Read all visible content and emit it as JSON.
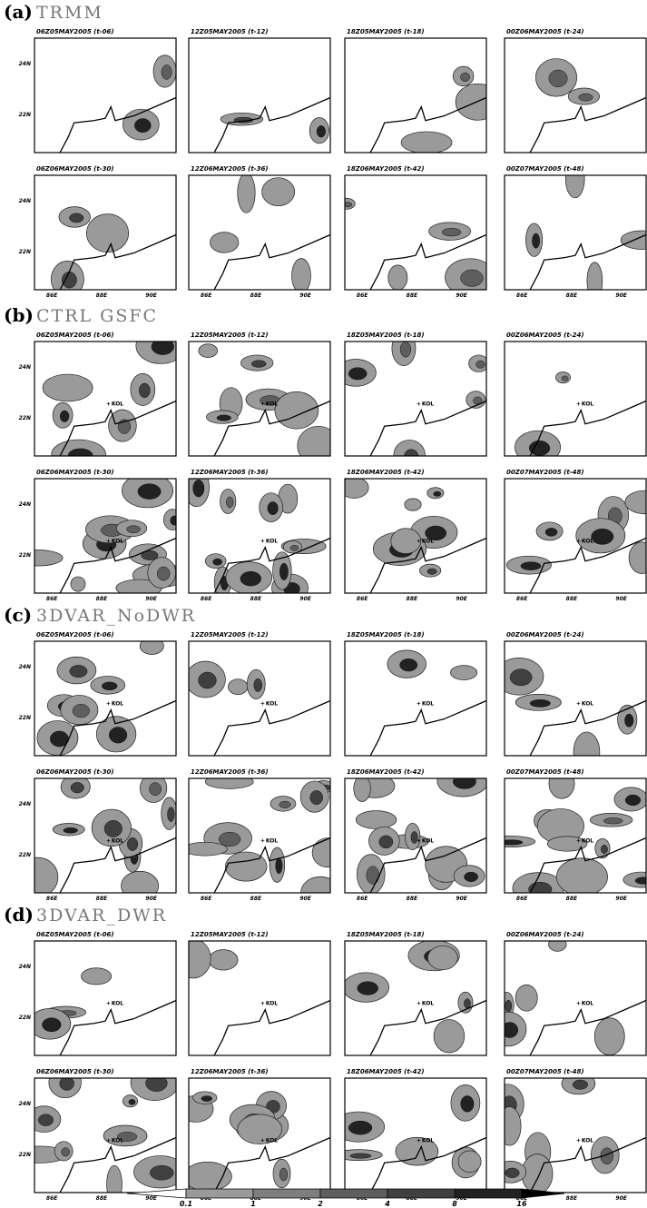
{
  "figure": {
    "sections": [
      {
        "label": "(a)",
        "name": "TRMM",
        "show_marker": false
      },
      {
        "label": "(b)",
        "name": "CTRL  GSFC",
        "show_marker": true
      },
      {
        "label": "(c)",
        "name": "3DVAR_NoDWR",
        "show_marker": true
      },
      {
        "label": "(d)",
        "name": "3DVAR_DWR",
        "show_marker": true
      }
    ],
    "panel_titles": [
      "06Z05MAY2005 (t-06)",
      "12Z05MAY2005 (t-12)",
      "18Z05MAY2005 (t-18)",
      "00Z06MAY2005 (t-24)",
      "06Z06MAY2005 (t-30)",
      "12Z06MAY2005 (t-36)",
      "18Z06MAY2005 (t-42)",
      "00Z07MAY2005 (t-48)"
    ],
    "lon_lim": [
      85.3,
      91
    ],
    "lat_lim": [
      20.5,
      25
    ],
    "lat_ticks": [
      {
        "value": 24,
        "label": "24N"
      },
      {
        "value": 22,
        "label": "22N"
      }
    ],
    "lon_ticks": [
      {
        "value": 86,
        "label": "86E"
      },
      {
        "value": 88,
        "label": "88E"
      },
      {
        "value": 90,
        "label": "90E"
      }
    ],
    "marker": {
      "label": "KOL",
      "lon": 88.4,
      "lat": 22.55
    },
    "colorbar": {
      "levels": [
        0.1,
        1,
        2,
        4,
        8,
        16
      ],
      "colors": [
        "#ffffff",
        "#9a9a9a",
        "#7e7e7e",
        "#5e5e5e",
        "#404040",
        "#222222",
        "#000000"
      ]
    }
  }
}
